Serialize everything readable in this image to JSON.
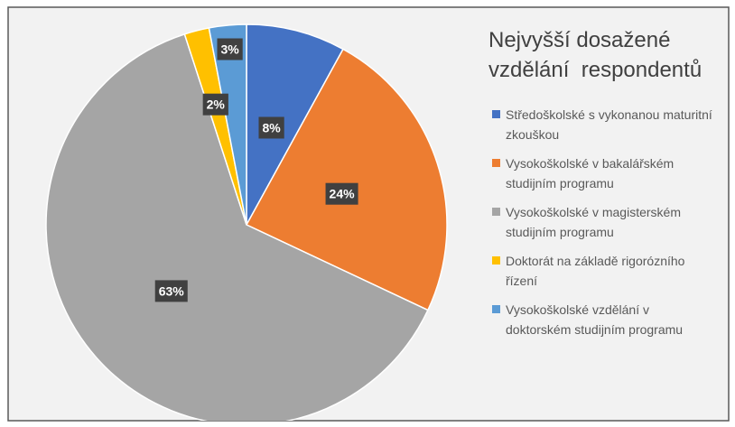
{
  "chart_data": {
    "type": "pie",
    "title": "Nejvyšší dosažené vzdělání  respondentů",
    "categories": [
      "Středoškolské s vykonanou maturitní zkouškou",
      "Vysokoškolské v bakalářském studijním programu",
      "Vysokoškolské v magisterském studijním programu",
      "Doktorát na základě rigorózního řízení",
      "Vysokoškolské vzdělání v doktorském studijním programu"
    ],
    "values": [
      8,
      24,
      63,
      2,
      3
    ],
    "value_labels": [
      "8%",
      "24%",
      "63%",
      "2%",
      "3%"
    ],
    "colors": [
      "#4472c4",
      "#ed7d31",
      "#a5a5a5",
      "#ffc000",
      "#5b9bd5"
    ],
    "legend": "right"
  }
}
